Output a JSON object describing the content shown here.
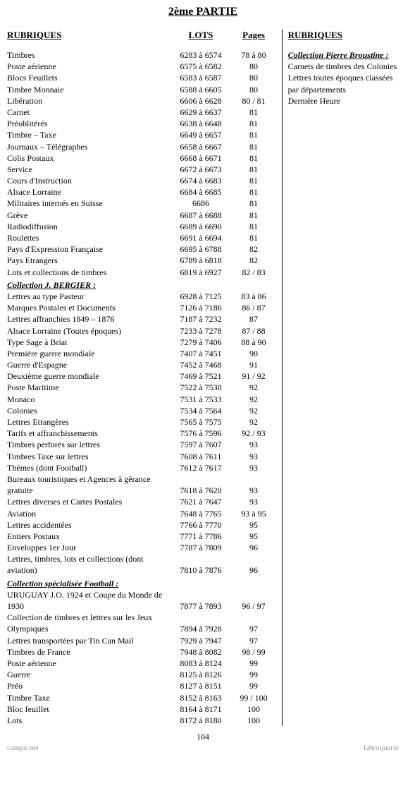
{
  "title": "2ème PARTIE",
  "headers": {
    "rubriques": "RUBRIQUES",
    "lots": "LOTS",
    "pages": "Pages"
  },
  "rows": [
    {
      "rubrique": "Timbres",
      "lots": "6283 à 6574",
      "pages": "78 à 80"
    },
    {
      "rubrique": "Poste aérienne",
      "lots": "6575 à 6582",
      "pages": "80"
    },
    {
      "rubrique": "Blocs Feuillets",
      "lots": "6583 à 6587",
      "pages": "80"
    },
    {
      "rubrique": "Timbre Monnaie",
      "lots": "6588 à 6605",
      "pages": "80"
    },
    {
      "rubrique": "Libération",
      "lots": "6606 à 6628",
      "pages": "80 / 81"
    },
    {
      "rubrique": "Carnet",
      "lots": "6629 à 6637",
      "pages": "81"
    },
    {
      "rubrique": "Préoblitérés",
      "lots": "6638 à 6648",
      "pages": "81"
    },
    {
      "rubrique": "Timbre – Taxe",
      "lots": "6649 à 6657",
      "pages": "81"
    },
    {
      "rubrique": "Journaux – Télégraphes",
      "lots": "6658 à 6667",
      "pages": "81"
    },
    {
      "rubrique": "Colis Postaux",
      "lots": "6668 à 6671",
      "pages": "81"
    },
    {
      "rubrique": "Service",
      "lots": "6672 à 6673",
      "pages": "81"
    },
    {
      "rubrique": "Cours d'Instruction",
      "lots": "6674 à 6683",
      "pages": "81"
    },
    {
      "rubrique": "Alsace Lorraine",
      "lots": "6684 à 6685",
      "pages": "81"
    },
    {
      "rubrique": "Militaires internés en Suisse",
      "lots": "6686",
      "pages": "81"
    },
    {
      "rubrique": "Grève",
      "lots": "6687 à 6688",
      "pages": "81"
    },
    {
      "rubrique": "Radiodiffusion",
      "lots": "6689 à 6690",
      "pages": "81"
    },
    {
      "rubrique": "Roulettes",
      "lots": "6691 à 6694",
      "pages": "81"
    },
    {
      "rubrique": "Pays d'Expression Française",
      "lots": "6695 à 6788",
      "pages": "82"
    },
    {
      "rubrique": "Pays Etrangers",
      "lots": "6789 à 6818",
      "pages": "82"
    },
    {
      "rubrique": "Lots et collections de timbres",
      "lots": "6819 à 6927",
      "pages": "82 / 83"
    },
    {
      "section": "Collection J. BERGIER :"
    },
    {
      "rubrique": "Lettres au type Pasteur",
      "lots": "6928 à 7125",
      "pages": "83 à 86"
    },
    {
      "rubrique": "Marques Postales et Documents",
      "lots": "7126 à 7186",
      "pages": "86 / 87"
    },
    {
      "rubrique": "Lettres affranchies 1849 – 1876",
      "lots": "7187 à 7232",
      "pages": "87"
    },
    {
      "rubrique": "Alsace Lorraine (Toutes époques)",
      "lots": "7233 à 7278",
      "pages": "87 / 88"
    },
    {
      "rubrique": "Type Sage à Briat",
      "lots": "7279 à 7406",
      "pages": "88 à 90"
    },
    {
      "rubrique": "Première guerre mondiale",
      "lots": "7407 à 7451",
      "pages": "90"
    },
    {
      "rubrique": "Guerre d'Espagne",
      "lots": "7452 à 7468",
      "pages": "91"
    },
    {
      "rubrique": "Deuxième guerre mondiale",
      "lots": "7469 à 7521",
      "pages": "91 / 92"
    },
    {
      "rubrique": "Poste Maritime",
      "lots": "7522 à 7530",
      "pages": "92"
    },
    {
      "rubrique": "Monaco",
      "lots": "7531 à 7533",
      "pages": "92"
    },
    {
      "rubrique": "Colonies",
      "lots": "7534 à 7564",
      "pages": "92"
    },
    {
      "rubrique": "Lettres Etrangères",
      "lots": "7565 à 7575",
      "pages": "92"
    },
    {
      "rubrique": "Tarifs et affranchissements",
      "lots": "7576 à 7596",
      "pages": "92 / 93"
    },
    {
      "rubrique": "Timbres perforés sur lettres",
      "lots": "7597 à 7607",
      "pages": "93"
    },
    {
      "rubrique": "Timbres Taxe sur lettres",
      "lots": "7608 à 7611",
      "pages": "93"
    },
    {
      "rubrique": "Thèmes (dont Football)",
      "lots": "7612 à 7617",
      "pages": "93"
    },
    {
      "rubrique": "Bureaux touristiques et Agences à gérance gratuite",
      "lots": "7618 à 7620",
      "pages": "93",
      "twoLine": true
    },
    {
      "rubrique": "Lettres diverses et Cartes Postales",
      "lots": "7621 à 7647",
      "pages": "93"
    },
    {
      "rubrique": "Aviation",
      "lots": "7648 à 7765",
      "pages": "93 à 95"
    },
    {
      "rubrique": "Lettres accidentées",
      "lots": "7766 à 7770",
      "pages": "95"
    },
    {
      "rubrique": "Entiers Postaux",
      "lots": "7771 à 7786",
      "pages": "95"
    },
    {
      "rubrique": "Enveloppes 1er Jour",
      "lots": "7787 à 7809",
      "pages": "96"
    },
    {
      "rubrique": "Lettres, timbres, lots et collections (dont aviation)",
      "lots": "7810 à 7876",
      "pages": "96",
      "twoLine": true
    },
    {
      "section": "Collection spécialisée Football :"
    },
    {
      "rubrique": "URUGUAY J.O. 1924 et Coupe du Monde de 1930",
      "lots": "7877 à 7893",
      "pages": "96 / 97",
      "twoLine": true
    },
    {
      "rubrique": "Collection de timbres et lettres sur les Jeux Olympiques",
      "lots": "7894 à 7928",
      "pages": "97",
      "twoLine": true
    },
    {
      "rubrique": "Lettres transportées par Tin Can Mail",
      "lots": "7929 à 7947",
      "pages": "97"
    },
    {
      "rubrique": "Timbres de France",
      "lots": "7948 à 8082",
      "pages": "98 / 99"
    },
    {
      "rubrique": "Poste aérienne",
      "lots": "8083 à 8124",
      "pages": "99"
    },
    {
      "rubrique": "Guerre",
      "lots": "8125 à 8126",
      "pages": "99"
    },
    {
      "rubrique": "Préo",
      "lots": "8127 à 8151",
      "pages": "99"
    },
    {
      "rubrique": "Timbre Taxe",
      "lots": "8152 à 8163",
      "pages": "99 / 100"
    },
    {
      "rubrique": "Bloc feuillet",
      "lots": "8164 à 8171",
      "pages": "100"
    },
    {
      "rubrique": "Lots",
      "lots": "8172 à 8180",
      "pages": "100"
    }
  ],
  "right": {
    "header": "RUBRIQUES",
    "section": "Collection Pierre Broustine :",
    "lines": [
      "Carnets de timbres des Colonies",
      "Lettres toutes époques classées par départements",
      "Dernière Heure"
    ]
  },
  "footer": {
    "pageNumber": "104",
    "watermarkLeft": "campe.net",
    "watermarkRight": "labroquerie"
  }
}
